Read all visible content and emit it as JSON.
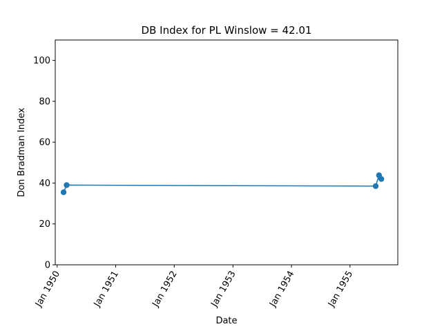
{
  "chart_data": {
    "type": "line",
    "title": "DB Index for PL Winslow = 42.01",
    "xlabel": "Date",
    "ylabel": "Don Bradman Index",
    "ylim": [
      0,
      110
    ],
    "yticks": [
      0,
      20,
      40,
      60,
      80,
      100
    ],
    "xlim": [
      "1949-12-20",
      "1955-10-26"
    ],
    "xticks": [
      {
        "date": "1950-01-01",
        "label": "Jan 1950"
      },
      {
        "date": "1951-01-01",
        "label": "Jan 1951"
      },
      {
        "date": "1952-01-01",
        "label": "Jan 1952"
      },
      {
        "date": "1953-01-01",
        "label": "Jan 1953"
      },
      {
        "date": "1954-01-01",
        "label": "Jan 1954"
      },
      {
        "date": "1955-01-01",
        "label": "Jan 1955"
      }
    ],
    "grid": false,
    "legend": "none",
    "series": [
      {
        "color": "#1f77b4",
        "points": [
          {
            "x": "1950-02-10",
            "y": 35.5
          },
          {
            "x": "1950-03-01",
            "y": 39.0
          },
          {
            "x": "1955-06-10",
            "y": 38.5
          },
          {
            "x": "1955-07-01",
            "y": 43.8
          },
          {
            "x": "1955-07-15",
            "y": 42.0
          }
        ]
      }
    ]
  }
}
